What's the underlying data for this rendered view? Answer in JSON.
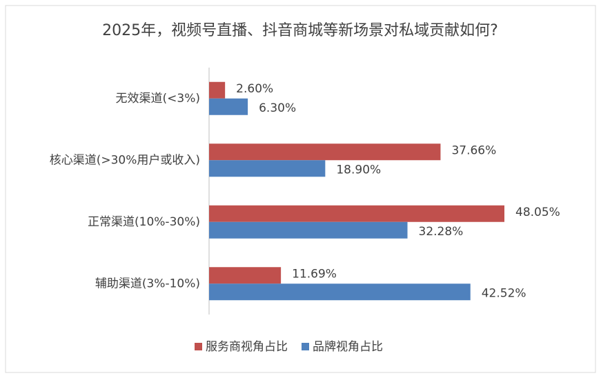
{
  "chart_data": {
    "type": "bar",
    "orientation": "horizontal",
    "title": "2025年，视频号直播、抖音商城等新场景对私域贡献如何?",
    "categories": [
      "无效渠道(<3%)",
      "核心渠道(>30%用户或收入)",
      "正常渠道(10%-30%)",
      "辅助渠道(3%-10%)"
    ],
    "series": [
      {
        "name": "服务商视角占比",
        "color": "#c0504d",
        "values": [
          2.6,
          37.66,
          48.05,
          11.69
        ],
        "value_labels": [
          "2.60%",
          "37.66%",
          "48.05%",
          "11.69%"
        ]
      },
      {
        "name": "品牌视角占比",
        "color": "#4f81bd",
        "values": [
          6.3,
          18.9,
          32.28,
          42.52
        ],
        "value_labels": [
          "6.30%",
          "18.90%",
          "32.28%",
          "42.52%"
        ]
      }
    ],
    "legend": "bottom"
  }
}
